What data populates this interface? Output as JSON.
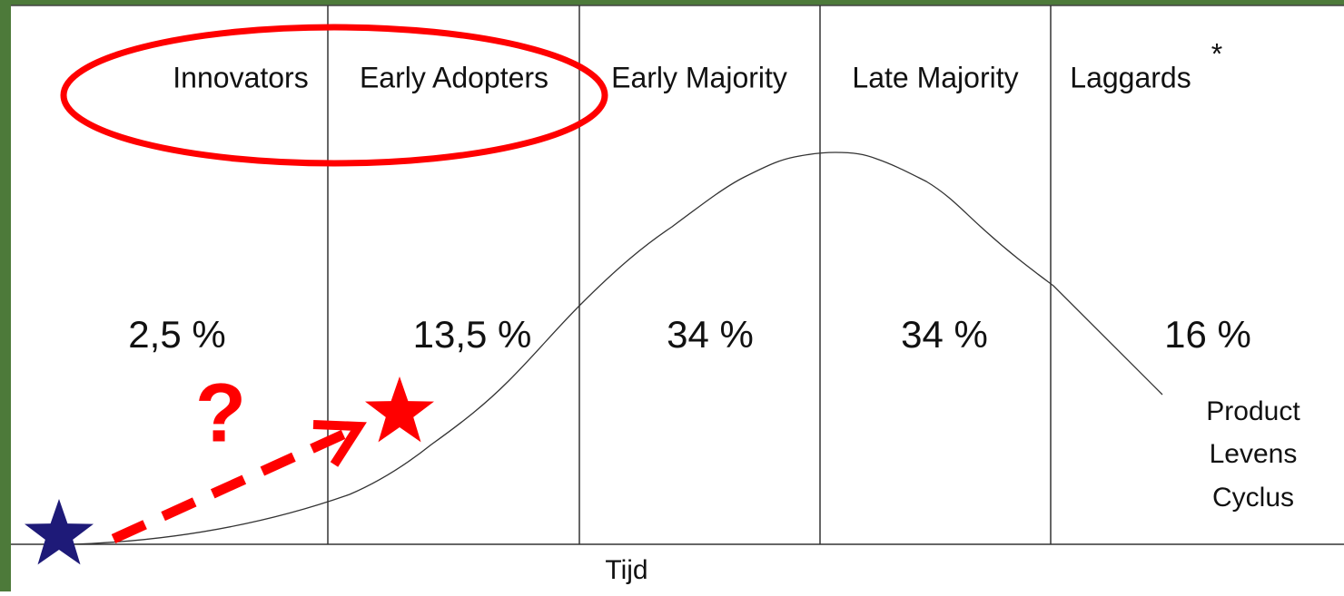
{
  "segments": [
    {
      "label": "Innovators",
      "share": "2,5 %"
    },
    {
      "label": "Early Adopters",
      "share": "13,5 %"
    },
    {
      "label": "Early Majority",
      "share": "34 %"
    },
    {
      "label": "Late Majority",
      "share": "34 %"
    },
    {
      "label": "Laggards",
      "share": "16 %"
    }
  ],
  "note_mark": "*",
  "curve_label": [
    "Product",
    "Levens",
    "Cyclus"
  ],
  "axis_label": "Tijd",
  "question": "?"
}
